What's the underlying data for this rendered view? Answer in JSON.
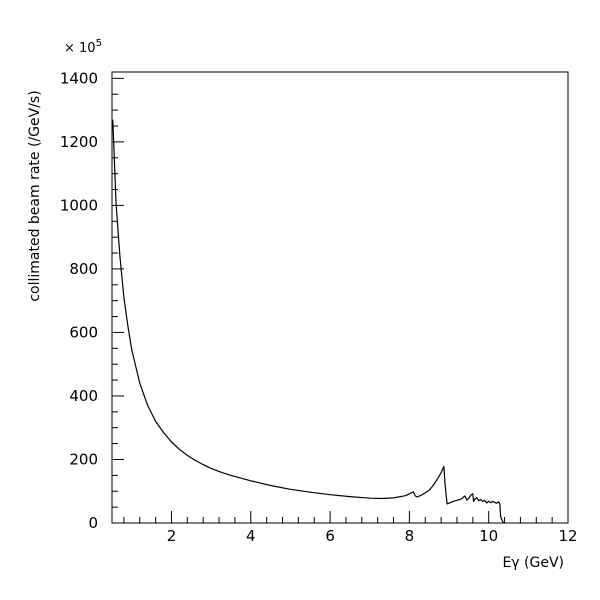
{
  "chart_data": {
    "type": "line",
    "title": "",
    "xlabel": "Eγ (GeV)",
    "ylabel": "collimated beam rate (/GeV/s)",
    "y_multiplier": {
      "base": "× 10",
      "exponent": "5"
    },
    "xlim": [
      0.5,
      12
    ],
    "ylim": [
      0,
      1420
    ],
    "x_ticks": [
      2,
      4,
      6,
      8,
      10,
      12
    ],
    "x_tick_labels": [
      "2",
      "4",
      "6",
      "8",
      "10",
      "12"
    ],
    "y_ticks": [
      0,
      200,
      400,
      600,
      800,
      1000,
      1200,
      1400
    ],
    "y_tick_labels": [
      "0",
      "200",
      "400",
      "600",
      "800",
      "1000",
      "1200",
      "1400"
    ],
    "grid": false,
    "series": [
      {
        "x": [
          0.52,
          0.6,
          0.7,
          0.8,
          0.9,
          1.0,
          1.2,
          1.4,
          1.6,
          1.8,
          2.0,
          2.2,
          2.4,
          2.6,
          2.8,
          3.0,
          3.25,
          3.5,
          4.0,
          4.5,
          5.0,
          5.5,
          6.0,
          6.5,
          7.0,
          7.3,
          7.6,
          7.9,
          8.1,
          8.15,
          8.2,
          8.3,
          8.4,
          8.5,
          8.6,
          8.7,
          8.8,
          8.87,
          8.9,
          8.95,
          9.1,
          9.3,
          9.4,
          9.45,
          9.5,
          9.55,
          9.6,
          9.62,
          9.65,
          9.7,
          9.75,
          9.8,
          9.85,
          9.9,
          9.95,
          10.0,
          10.05,
          10.1,
          10.2,
          10.25,
          10.28,
          10.3,
          10.35,
          10.38
        ],
        "y": [
          1270,
          1010,
          840,
          710,
          620,
          545,
          440,
          370,
          320,
          285,
          255,
          232,
          213,
          197,
          184,
          172,
          160,
          150,
          133,
          118,
          106,
          97,
          89,
          83,
          78,
          77,
          79,
          86,
          98,
          85,
          82,
          88,
          95,
          103,
          118,
          137,
          158,
          178,
          120,
          60,
          68,
          75,
          85,
          72,
          78,
          88,
          92,
          68,
          75,
          80,
          70,
          74,
          68,
          71,
          63,
          69,
          64,
          68,
          62,
          67,
          60,
          20,
          5,
          0
        ]
      }
    ]
  }
}
